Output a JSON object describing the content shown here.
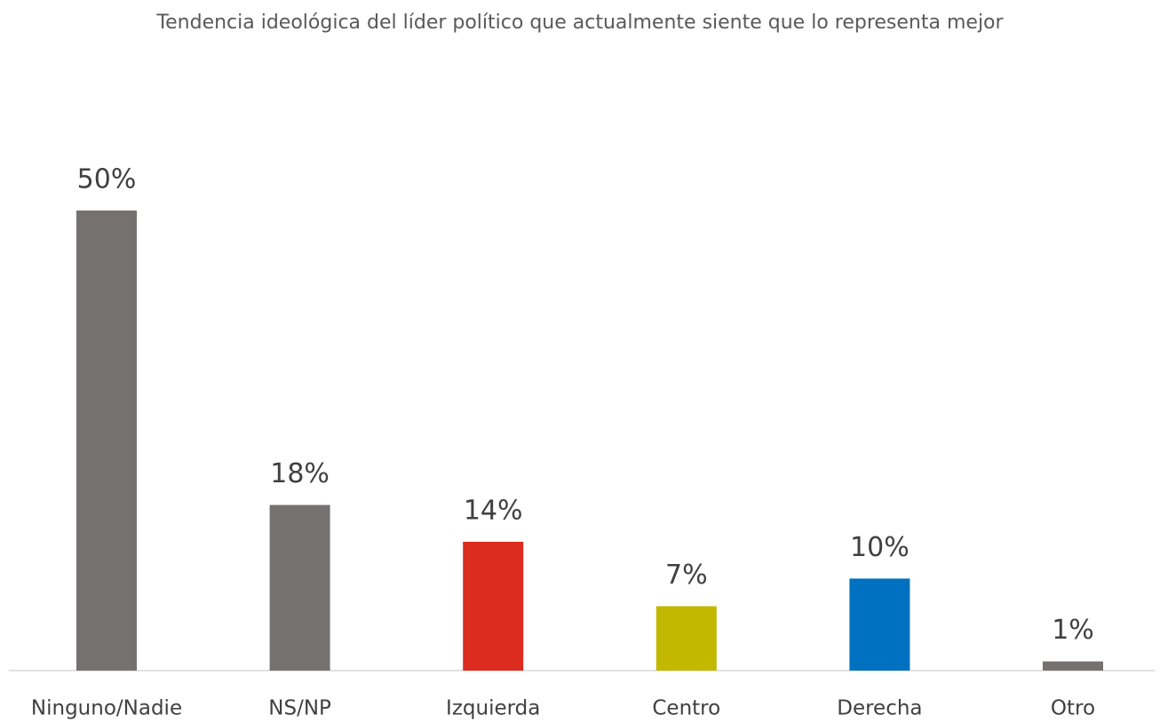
{
  "chart_data": {
    "type": "bar",
    "title": "Tendencia ideológica del líder político que actualmente siente que lo representa mejor",
    "categories": [
      "Ninguno/Nadie",
      "NS/NP",
      "Izquierda",
      "Centro",
      "Derecha",
      "Otro"
    ],
    "values": [
      50,
      18,
      14,
      7,
      10,
      1
    ],
    "value_labels": [
      "50%",
      "18%",
      "14%",
      "7%",
      "10%",
      "1%"
    ],
    "colors": [
      "#767171",
      "#767171",
      "#dc2b1f",
      "#c3b800",
      "#0070c0",
      "#767171"
    ]
  }
}
